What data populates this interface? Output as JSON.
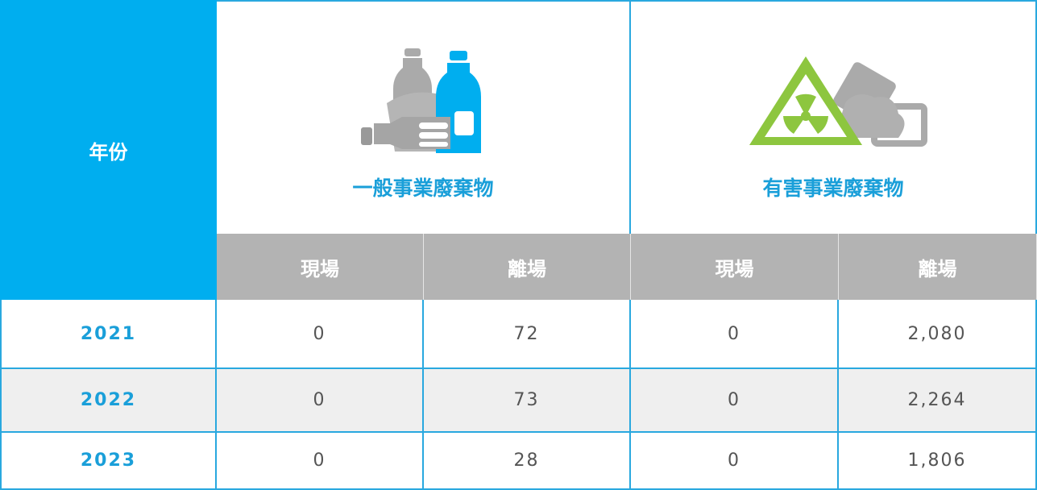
{
  "table": {
    "header": {
      "year": "年份",
      "groups": [
        {
          "title": "一般事業廢棄物",
          "subheaders": [
            "現場",
            "離場"
          ]
        },
        {
          "title": "有害事業廢棄物",
          "subheaders": [
            "現場",
            "離場"
          ]
        }
      ]
    },
    "rows": [
      [
        "2021",
        "0",
        "72",
        "0",
        "2,080"
      ],
      [
        "2022",
        "0",
        "73",
        "0",
        "2,264"
      ],
      [
        "2023",
        "0",
        "28",
        "0",
        "1,806"
      ]
    ]
  }
}
